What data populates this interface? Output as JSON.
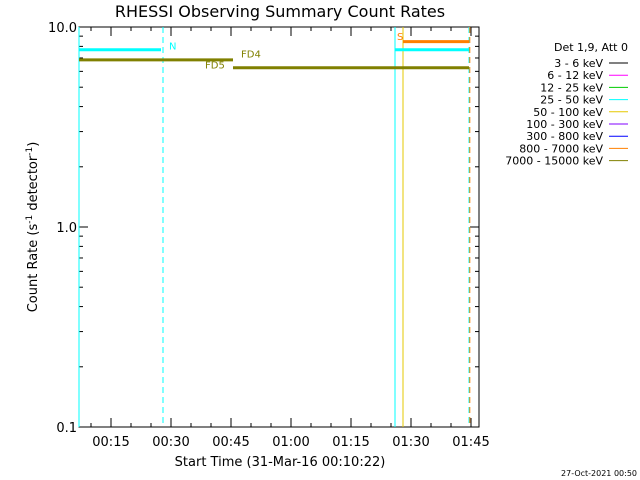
{
  "chart_data": {
    "type": "line",
    "title": "RHESSI Observing Summary Count Rates",
    "xlabel": "Start Time (31-Mar-16 00:10:22)",
    "ylabel_main": "Count Rate (s",
    "ylabel_sup1": "-1",
    "ylabel_mid": " detector",
    "ylabel_sup2": "-1",
    "ylabel_end": ")",
    "y_scale": "log",
    "ylim": [
      0.1,
      10.0
    ],
    "xlim": [
      "00:08",
      "00:47"
    ],
    "x_ticks": [
      {
        "t": 15,
        "label": "00:15"
      },
      {
        "t": 30,
        "label": "00:30"
      },
      {
        "t": 45,
        "label": "00:45"
      },
      {
        "t": 60,
        "label": "01:00"
      },
      {
        "t": 75,
        "label": "01:15"
      },
      {
        "t": 90,
        "label": "01:30"
      },
      {
        "t": 105,
        "label": "01:45"
      }
    ],
    "y_ticks": [
      {
        "v": 10,
        "label": "10.0"
      },
      {
        "v": 1,
        "label": "1.0"
      },
      {
        "v": 0.1,
        "label": "0.1"
      }
    ],
    "legend_title": "Det 1,9, Att 0",
    "legend_position": "right",
    "legend": [
      {
        "label": "3 - 6 keV",
        "color": "#000000"
      },
      {
        "label": "6 - 12 keV",
        "color": "#ff00ff"
      },
      {
        "label": "12 - 25 keV",
        "color": "#00cc00"
      },
      {
        "label": "25 - 50 keV",
        "color": "#00ffff"
      },
      {
        "label": "50 - 100 keV",
        "color": "#e6c800"
      },
      {
        "label": "100 - 300 keV",
        "color": "#8000ff"
      },
      {
        "label": "300 - 800 keV",
        "color": "#0000ff"
      },
      {
        "label": "800 - 7000 keV",
        "color": "#ff8000"
      },
      {
        "label": "7000 - 15000 keV",
        "color": "#808000"
      }
    ],
    "series": [
      {
        "name": "25 - 50 keV",
        "color": "#00ffff",
        "width": 3,
        "segments": [
          [
            [
              7,
              7.7
            ],
            [
              27.5,
              7.7
            ]
          ],
          [
            [
              86,
              7.7
            ],
            [
              104.5,
              7.7
            ]
          ]
        ]
      },
      {
        "name": "7000 - 15000 keV",
        "color": "#808000",
        "width": 3,
        "segments": [
          [
            [
              7,
              6.85
            ],
            [
              45.5,
              6.85
            ]
          ],
          [
            [
              45.5,
              6.25
            ],
            [
              104.5,
              6.25
            ]
          ]
        ]
      },
      {
        "name": "800 - 7000 keV",
        "color": "#ff8000",
        "width": 3,
        "segments": [
          [
            [
              88,
              8.45
            ],
            [
              104.5,
              8.45
            ]
          ]
        ]
      }
    ],
    "vlines": [
      {
        "t": 7,
        "color": "#00ffff",
        "dashed": false
      },
      {
        "t": 28,
        "color": "#00ffff",
        "dashed": true
      },
      {
        "t": 86,
        "color": "#00ffff",
        "dashed": false
      },
      {
        "t": 88,
        "color": "#e6c800",
        "dashed": false
      },
      {
        "t": 104.5,
        "color": "#00ffff",
        "dashed": true
      },
      {
        "t": 104.7,
        "color": "#ff8000",
        "dashed": true
      }
    ],
    "annotations": [
      {
        "text": "N",
        "t": 29.5,
        "v": 7.7,
        "color": "#00ffff"
      },
      {
        "text": "S",
        "t": 86.5,
        "v": 8.6,
        "color": "#ff8000"
      },
      {
        "text": "FD4",
        "t": 47.5,
        "v": 7.05,
        "color": "#808000"
      },
      {
        "text": "FD5",
        "t": 38.5,
        "v": 6.2,
        "color": "#808000"
      }
    ],
    "grid": false
  },
  "footer": {
    "date": "27-Oct-2021 00:50"
  }
}
